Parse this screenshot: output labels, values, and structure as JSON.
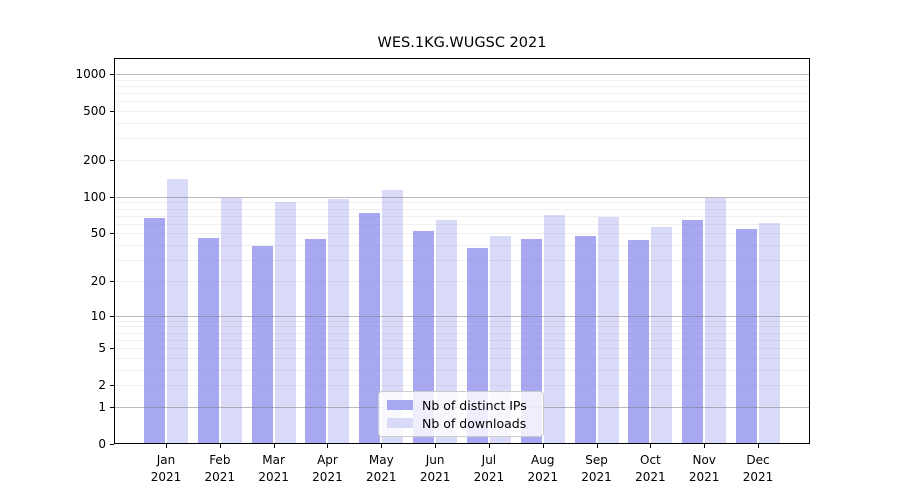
{
  "chart_data": {
    "type": "bar",
    "title": "WES.1KG.WUGSC 2021",
    "categories": [
      "Jan 2021",
      "Feb 2021",
      "Mar 2021",
      "Apr 2021",
      "May 2021",
      "Jun 2021",
      "Jul 2021",
      "Aug 2021",
      "Sep 2021",
      "Oct 2021",
      "Nov 2021",
      "Dec 2021"
    ],
    "series": [
      {
        "name": "Nb of distinct IPs",
        "color": "#a8a8f2",
        "values": [
          67,
          46,
          39,
          45,
          74,
          52,
          38,
          45,
          48,
          44,
          65,
          54
        ]
      },
      {
        "name": "Nb of downloads",
        "color": "#d9d9f8",
        "values": [
          140,
          98,
          91,
          96,
          114,
          64,
          48,
          71,
          68,
          57,
          98,
          61
        ]
      }
    ],
    "yscale": "log1p",
    "ylim": [
      0,
      1000
    ],
    "yticks": [
      0,
      1,
      2,
      5,
      10,
      20,
      50,
      100,
      200,
      500,
      1000
    ],
    "grid": {
      "on": true,
      "major_lines": [
        1,
        10,
        100,
        1000
      ],
      "minor_multiples": [
        2,
        3,
        4,
        5,
        6,
        7,
        8,
        9
      ],
      "major_color": "#b9b9b9",
      "minor_color": "#ececec"
    },
    "legend": {
      "position": "lower center",
      "border_color": "#cccccc",
      "entries": [
        "Nb of distinct IPs",
        "Nb of downloads"
      ]
    }
  }
}
